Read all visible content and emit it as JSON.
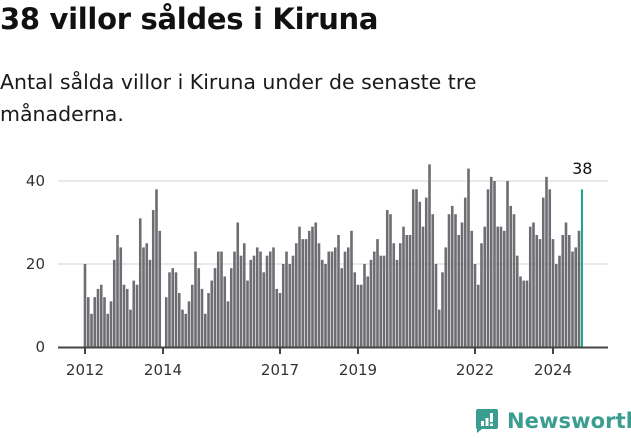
{
  "header": {
    "title": "38 villor såldes i Kiruna",
    "subtitle": "Antal sålda villor i Kiruna under de senaste tre månaderna."
  },
  "logo": {
    "icon": "newsworthy-bars-icon",
    "text": "Newsworthy",
    "color": "#3a9d90"
  },
  "colors": {
    "bar": "#6e6d72",
    "highlight": "#1aa391",
    "grid": "#e2e2e2",
    "axis": "#444444"
  },
  "chart_data": {
    "type": "bar",
    "title": "38 villor såldes i Kiruna",
    "subtitle": "Antal sålda villor i Kiruna under de senaste tre månaderna.",
    "xlabel": "",
    "ylabel": "",
    "ylim": [
      0,
      44
    ],
    "yticks": [
      0,
      20,
      40
    ],
    "grid": true,
    "legend": null,
    "x_start": "2012-01",
    "x_end": "2024-10",
    "frequency": "monthly",
    "xtick_labels": [
      {
        "label": "2012",
        "month_index": 0
      },
      {
        "label": "2014",
        "month_index": 24
      },
      {
        "label": "2017",
        "month_index": 60
      },
      {
        "label": "2019",
        "month_index": 84
      },
      {
        "label": "2022",
        "month_index": 120
      },
      {
        "label": "2024",
        "month_index": 144
      }
    ],
    "series": [
      {
        "name": "Sålda villor",
        "values": [
          20,
          12,
          8,
          12,
          14,
          15,
          12,
          8,
          11,
          21,
          27,
          24,
          15,
          14,
          9,
          16,
          15,
          31,
          24,
          25,
          21,
          33,
          38,
          28,
          0,
          12,
          18,
          19,
          18,
          13,
          9,
          8,
          11,
          15,
          23,
          19,
          14,
          8,
          13,
          16,
          19,
          23,
          23,
          17,
          11,
          19,
          23,
          30,
          22,
          25,
          16,
          21,
          22,
          24,
          23,
          18,
          22,
          23,
          24,
          14,
          13,
          20,
          23,
          20,
          22,
          25,
          29,
          26,
          26,
          28,
          29,
          30,
          25,
          21,
          20,
          23,
          23,
          24,
          27,
          19,
          23,
          24,
          28,
          18,
          15,
          15,
          20,
          17,
          21,
          23,
          26,
          22,
          22,
          33,
          32,
          25,
          21,
          25,
          29,
          27,
          27,
          38,
          38,
          35,
          29,
          36,
          44,
          32,
          20,
          9,
          18,
          24,
          32,
          34,
          32,
          27,
          30,
          36,
          43,
          28,
          20,
          15,
          25,
          29,
          38,
          41,
          40,
          29,
          29,
          28,
          40,
          34,
          32,
          22,
          17,
          16,
          16,
          29,
          30,
          27,
          26,
          36,
          41,
          38,
          26,
          20,
          22,
          27,
          30,
          27,
          23,
          24,
          28,
          38
        ]
      }
    ],
    "annotations": [
      {
        "text": "38",
        "month_index": 153,
        "note": "latest value, highlighted"
      }
    ]
  }
}
